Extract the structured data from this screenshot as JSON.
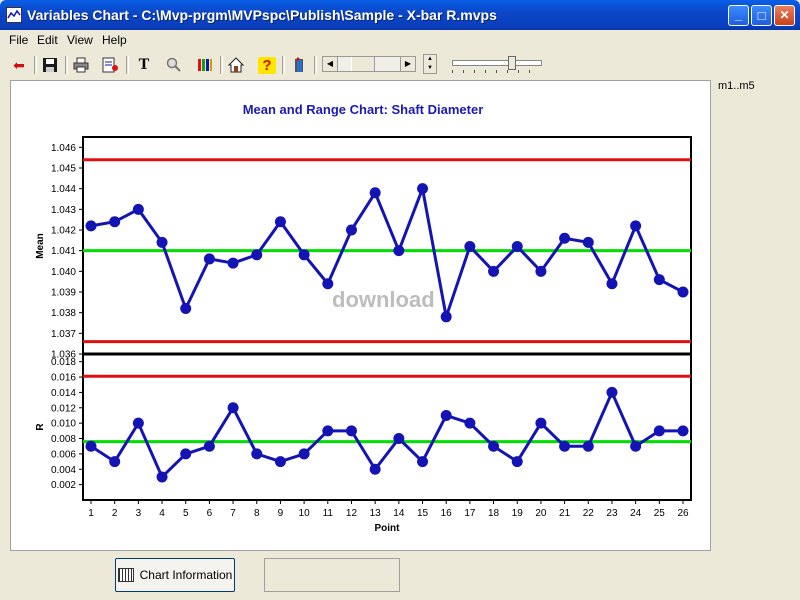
{
  "window": {
    "title": "Variables Chart - C:\\Mvp-prgm\\MVPspc\\Publish\\Sample -  X-bar R.mvps",
    "min_symbol": "_",
    "max_symbol": "□",
    "close_symbol": "✕"
  },
  "menu": {
    "file": "File",
    "edit": "Edit",
    "view": "View",
    "help": "Help"
  },
  "toolbar": {
    "back_glyph": "⬅",
    "text_glyph": "T",
    "help_glyph": "?"
  },
  "side_label": "m1..m5",
  "watermark": "download",
  "footer": {
    "chart_info_label": "Chart Information"
  },
  "colors": {
    "series": "#1414b4",
    "ucl": "#e01010",
    "center": "#00e000",
    "title": "#1a1ab5"
  },
  "chart_data": [
    {
      "type": "line",
      "title": "Mean and Range Chart: Shaft Diameter",
      "ylabel": "Mean",
      "xlabel": "",
      "ylim": [
        1.036,
        1.0465
      ],
      "yticks": [
        "1.036",
        "1.037",
        "1.038",
        "1.039",
        "1.040",
        "1.041",
        "1.042",
        "1.043",
        "1.044",
        "1.045",
        "1.046"
      ],
      "x": [
        1,
        2,
        3,
        4,
        5,
        6,
        7,
        8,
        9,
        10,
        11,
        12,
        13,
        14,
        15,
        16,
        17,
        18,
        19,
        20,
        21,
        22,
        23,
        24,
        25,
        26
      ],
      "values": [
        1.0422,
        1.0424,
        1.043,
        1.0414,
        1.0382,
        1.0406,
        1.0404,
        1.0408,
        1.0424,
        1.0408,
        1.0394,
        1.042,
        1.0438,
        1.041,
        1.044,
        1.0378,
        1.0412,
        1.04,
        1.0412,
        1.04,
        1.0416,
        1.0414,
        1.0394,
        1.0422,
        1.0396,
        1.039
      ],
      "ucl": 1.0454,
      "center": 1.041,
      "lcl": 1.0366,
      "grid": false
    },
    {
      "type": "line",
      "title": "",
      "ylabel": "R",
      "xlabel": "Point",
      "ylim": [
        0,
        0.019
      ],
      "yticks": [
        "0.002",
        "0.004",
        "0.006",
        "0.008",
        "0.010",
        "0.012",
        "0.014",
        "0.016",
        "0.018"
      ],
      "xticks": [
        "1",
        "2",
        "3",
        "4",
        "5",
        "6",
        "7",
        "8",
        "9",
        "10",
        "11",
        "12",
        "13",
        "14",
        "15",
        "16",
        "17",
        "18",
        "19",
        "20",
        "21",
        "22",
        "23",
        "24",
        "25",
        "26"
      ],
      "x": [
        1,
        2,
        3,
        4,
        5,
        6,
        7,
        8,
        9,
        10,
        11,
        12,
        13,
        14,
        15,
        16,
        17,
        18,
        19,
        20,
        21,
        22,
        23,
        24,
        25,
        26
      ],
      "values": [
        0.007,
        0.005,
        0.01,
        0.003,
        0.006,
        0.007,
        0.012,
        0.006,
        0.005,
        0.006,
        0.009,
        0.009,
        0.004,
        0.008,
        0.005,
        0.011,
        0.01,
        0.007,
        0.005,
        0.01,
        0.007,
        0.007,
        0.014,
        0.007,
        0.009,
        0.009
      ],
      "ucl": 0.0161,
      "center": 0.0076,
      "grid": false
    }
  ]
}
